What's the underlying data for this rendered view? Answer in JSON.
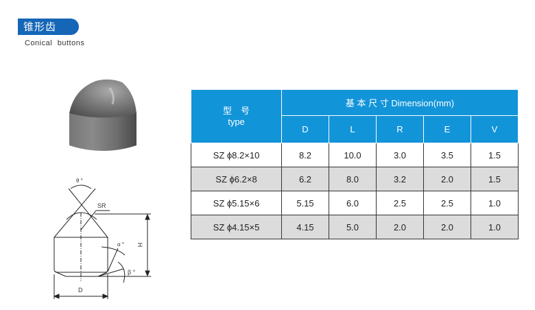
{
  "section": {
    "title_cn": "锥形齿",
    "title_en": "Conical buttons"
  },
  "table": {
    "type_header_cn": "型　号",
    "type_header_en": "type",
    "dimension_header": "基 本 尺 寸 Dimension(mm)",
    "columns": [
      "D",
      "L",
      "R",
      "E",
      "V"
    ],
    "rows": [
      {
        "type": "SZ ϕ8.2×10",
        "values": [
          "8.2",
          "10.0",
          "3.0",
          "3.5",
          "1.5"
        ]
      },
      {
        "type": "SZ ϕ6.2×8",
        "values": [
          "6.2",
          "8.0",
          "3.2",
          "2.0",
          "1.5"
        ]
      },
      {
        "type": "SZ ϕ5.15×6",
        "values": [
          "5.15",
          "6.0",
          "2.5",
          "2.5",
          "1.0"
        ]
      },
      {
        "type": "SZ ϕ4.15×5",
        "values": [
          "4.15",
          "5.0",
          "2.0",
          "2.0",
          "1.0"
        ]
      }
    ]
  },
  "drawing": {
    "theta": "θ °",
    "sr": "SR",
    "alpha": "α °",
    "beta": "β °",
    "h": "H",
    "d": "D"
  },
  "colors": {
    "badge": "#1566b7",
    "table_header": "#1294d9",
    "alt_row": "#dcdcdc"
  }
}
